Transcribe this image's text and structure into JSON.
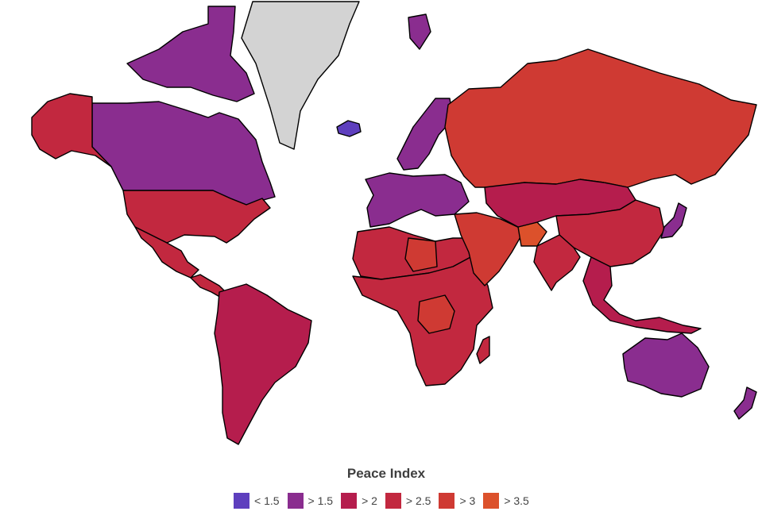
{
  "map": {
    "no_data_color": "#d3d3d3",
    "border_color": "#000000",
    "regions": [
      {
        "name": "Canada",
        "level": 1
      },
      {
        "name": "Canadian Arctic Archipelago",
        "level": 1
      },
      {
        "name": "Greenland",
        "level": -1
      },
      {
        "name": "Iceland",
        "level": 0
      },
      {
        "name": "Alaska",
        "level": 3
      },
      {
        "name": "United States",
        "level": 3
      },
      {
        "name": "Mexico",
        "level": 3
      },
      {
        "name": "Central America",
        "level": 3
      },
      {
        "name": "South America",
        "level": 2
      },
      {
        "name": "Europe",
        "level": 1
      },
      {
        "name": "Scandinavia",
        "level": 1
      },
      {
        "name": "Svalbard",
        "level": 1
      },
      {
        "name": "Russia",
        "level": 4
      },
      {
        "name": "North Africa",
        "level": 3
      },
      {
        "name": "Libya",
        "level": 4
      },
      {
        "name": "Sub-Saharan Africa",
        "level": 3
      },
      {
        "name": "DR Congo",
        "level": 4
      },
      {
        "name": "Middle East",
        "level": 4
      },
      {
        "name": "Afghanistan",
        "level": 5
      },
      {
        "name": "Central Asia",
        "level": 2
      },
      {
        "name": "China",
        "level": 3
      },
      {
        "name": "India",
        "level": 3
      },
      {
        "name": "Southeast Asia",
        "level": 2
      },
      {
        "name": "Japan",
        "level": 1
      },
      {
        "name": "Australia",
        "level": 1
      },
      {
        "name": "New Zealand",
        "level": 1
      },
      {
        "name": "Madagascar",
        "level": 3
      }
    ]
  },
  "legend": {
    "title": "Peace Index",
    "items": [
      {
        "label": "< 1.5",
        "color": "#5e3fbe"
      },
      {
        "label": "> 1.5",
        "color": "#8a2d8f"
      },
      {
        "label": "> 2",
        "color": "#b51d4d"
      },
      {
        "label": "> 2.5",
        "color": "#c2283f"
      },
      {
        "label": "> 3",
        "color": "#cf3a33"
      },
      {
        "label": "> 3.5",
        "color": "#dc512b"
      }
    ]
  }
}
